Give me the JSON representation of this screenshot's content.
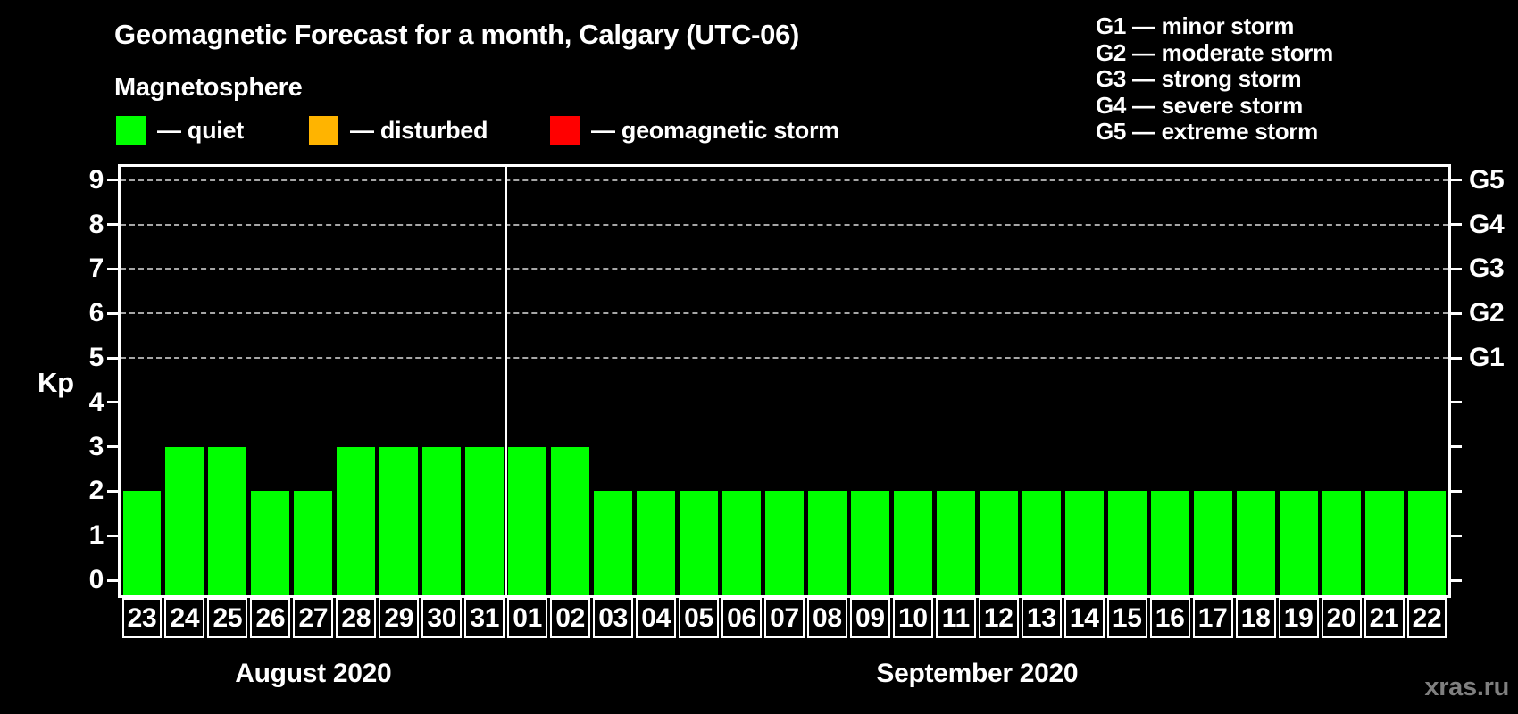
{
  "header": {
    "title": "Geomagnetic Forecast for a month, Calgary (UTC-06)",
    "subtitle": "Magnetosphere"
  },
  "legend": {
    "items": [
      {
        "name": "quiet",
        "label": "— quiet",
        "color": "#00ff00"
      },
      {
        "name": "disturbed",
        "label": "— disturbed",
        "color": "#ffb400"
      },
      {
        "name": "geomagnetic-storm",
        "label": "— geomagnetic storm",
        "color": "#ff0000"
      }
    ]
  },
  "g_legend": {
    "items": [
      "G1 — minor storm",
      "G2 — moderate storm",
      "G3 — strong storm",
      "G4 — severe storm",
      "G5 — extreme storm"
    ]
  },
  "footer": {
    "watermark": "xras.ru"
  },
  "chart_data": {
    "type": "bar",
    "title": "Geomagnetic Forecast for a month, Calgary (UTC-06)",
    "ylabel": "Kp",
    "ylim": [
      0,
      9
    ],
    "y_ticks": [
      0,
      1,
      2,
      3,
      4,
      5,
      6,
      7,
      8,
      9
    ],
    "gridlines": [
      5,
      6,
      7,
      8,
      9
    ],
    "grid_style": "dashed",
    "legend_position": "top",
    "bar_color": "#00ff00",
    "categories": [
      "23",
      "24",
      "25",
      "26",
      "27",
      "28",
      "29",
      "30",
      "31",
      "01",
      "02",
      "03",
      "04",
      "05",
      "06",
      "07",
      "08",
      "09",
      "10",
      "11",
      "12",
      "13",
      "14",
      "15",
      "16",
      "17",
      "18",
      "19",
      "20",
      "21",
      "22"
    ],
    "values": [
      2,
      3,
      3,
      2,
      2,
      3,
      3,
      3,
      3,
      3,
      3,
      2,
      2,
      2,
      2,
      2,
      2,
      2,
      2,
      2,
      2,
      2,
      2,
      2,
      2,
      2,
      2,
      2,
      2,
      2,
      2
    ],
    "months": [
      {
        "label": "August 2020",
        "days": 9
      },
      {
        "label": "September 2020",
        "days": 22
      }
    ],
    "right_axis": {
      "levels": [
        5,
        6,
        7,
        8,
        9
      ],
      "labels": [
        "G1",
        "G2",
        "G3",
        "G4",
        "G5"
      ]
    },
    "month_separator_after_index": 8
  }
}
